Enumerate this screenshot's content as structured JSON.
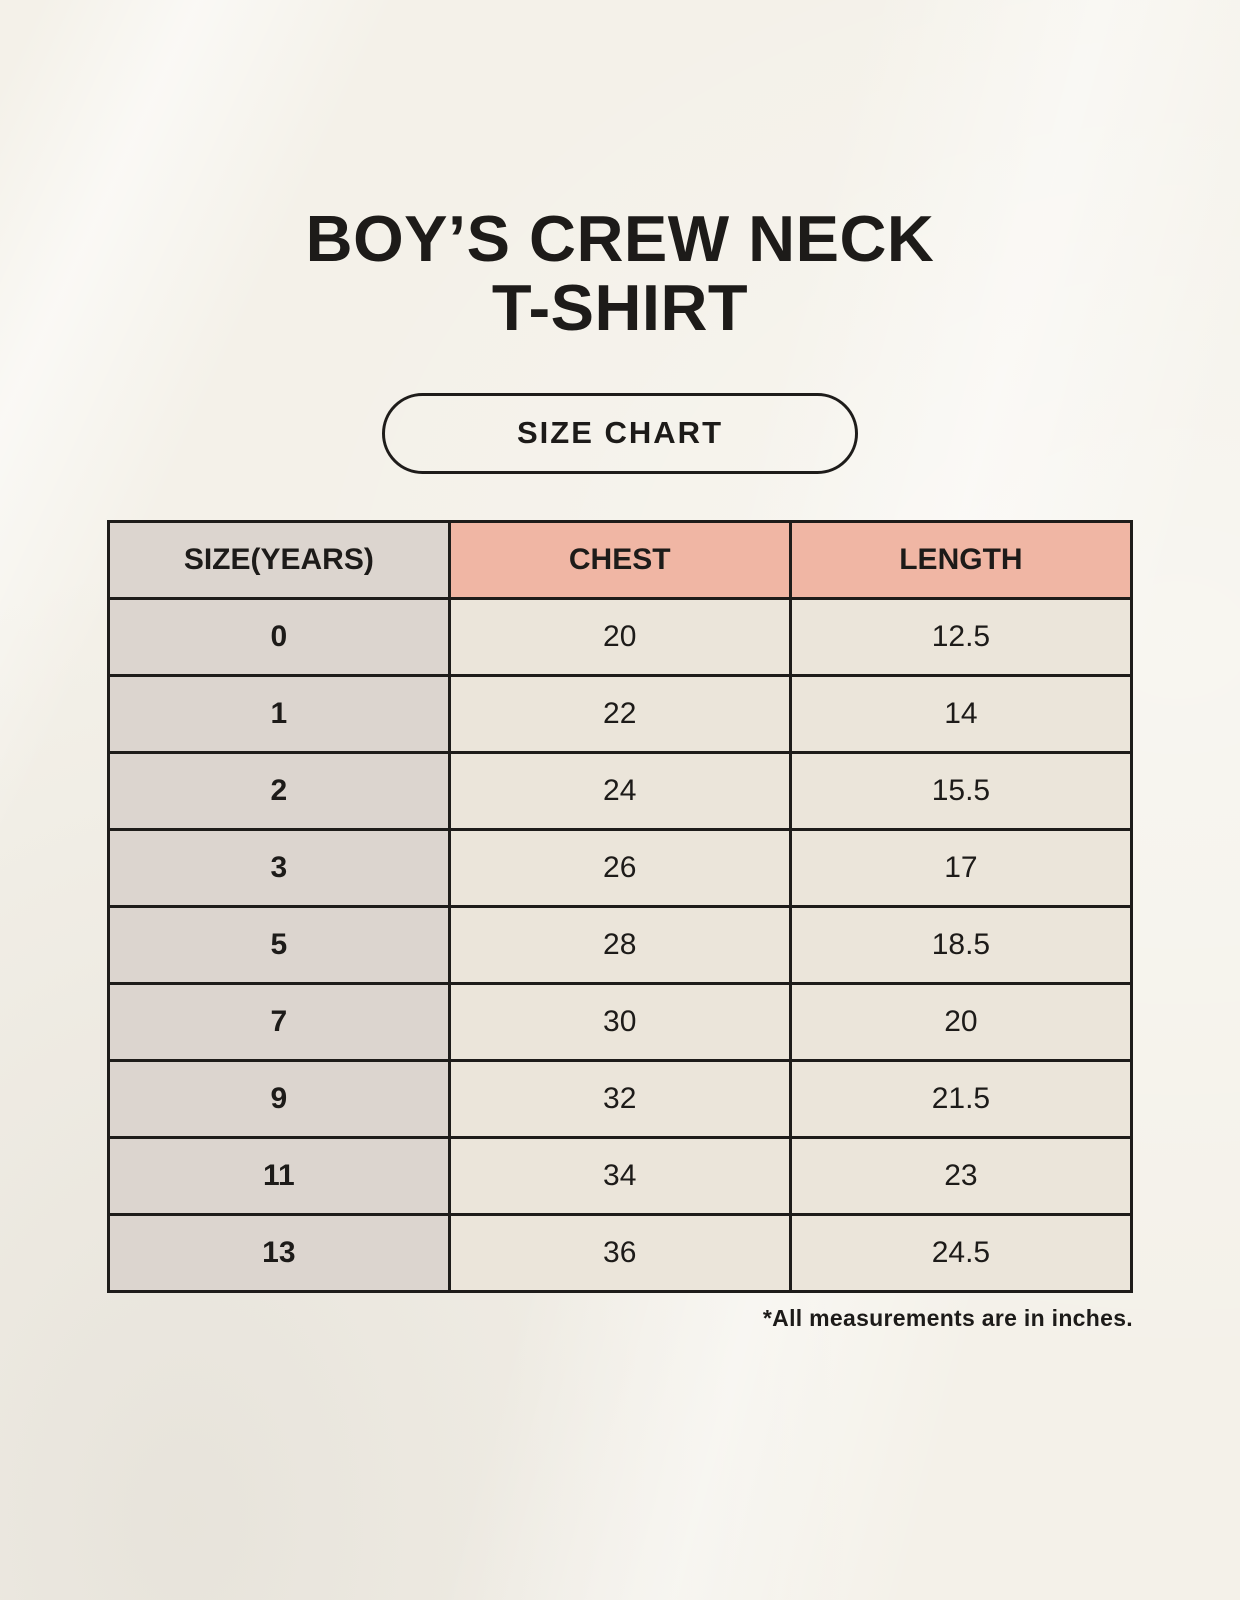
{
  "page": {
    "title_line1": "BOY’S CREW NECK",
    "title_line2": "T-SHIRT",
    "badge_label": "SIZE CHART",
    "footnote": "*All measurements are in inches."
  },
  "colors": {
    "background": "#f4f1e9",
    "header_pink": "#f0b6a4",
    "size_column_gray": "#dcd5cf",
    "cell_cream": "#ebe5da",
    "border": "#1e1c1a",
    "text": "#1d1b19"
  },
  "table": {
    "headers": {
      "size": "SIZE(YEARS)",
      "chest": "CHEST",
      "length": "LENGTH"
    },
    "rows": [
      {
        "size": "0",
        "chest": "20",
        "length": "12.5"
      },
      {
        "size": "1",
        "chest": "22",
        "length": "14"
      },
      {
        "size": "2",
        "chest": "24",
        "length": "15.5"
      },
      {
        "size": "3",
        "chest": "26",
        "length": "17"
      },
      {
        "size": "5",
        "chest": "28",
        "length": "18.5"
      },
      {
        "size": "7",
        "chest": "30",
        "length": "20"
      },
      {
        "size": "9",
        "chest": "32",
        "length": "21.5"
      },
      {
        "size": "11",
        "chest": "34",
        "length": "23"
      },
      {
        "size": "13",
        "chest": "36",
        "length": "24.5"
      }
    ]
  },
  "chart_data": {
    "type": "table",
    "title": "BOY’S CREW NECK T-SHIRT — SIZE CHART",
    "columns": [
      "SIZE(YEARS)",
      "CHEST",
      "LENGTH"
    ],
    "rows": [
      [
        0,
        20,
        12.5
      ],
      [
        1,
        22,
        14
      ],
      [
        2,
        24,
        15.5
      ],
      [
        3,
        26,
        17
      ],
      [
        5,
        28,
        18.5
      ],
      [
        7,
        30,
        20
      ],
      [
        9,
        32,
        21.5
      ],
      [
        11,
        34,
        23
      ],
      [
        13,
        36,
        24.5
      ]
    ],
    "units": "inches",
    "note": "*All measurements are in inches."
  }
}
